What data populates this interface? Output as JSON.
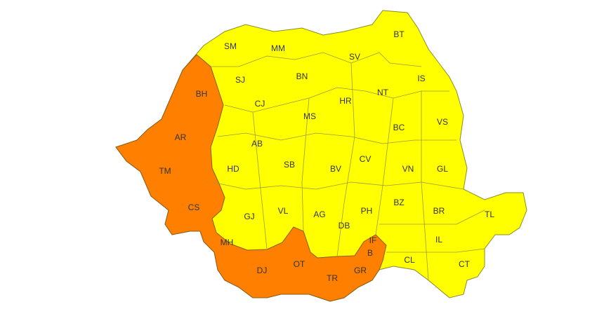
{
  "colors": {
    "yellow_warning": "#FFFF00",
    "orange_warning": "#FF8000",
    "border": "#8a8a2a",
    "background": "#FFFFFF"
  },
  "counties": {
    "orange": [
      "BH",
      "AR",
      "TM",
      "CS",
      "MH",
      "DJ",
      "OT",
      "TR",
      "GR",
      "IF",
      "B"
    ],
    "yellow": [
      "SM",
      "MM",
      "SV",
      "BT",
      "SJ",
      "BN",
      "IS",
      "NT",
      "CJ",
      "MS",
      "HR",
      "BC",
      "VS",
      "AB",
      "HD",
      "SB",
      "BV",
      "CV",
      "VN",
      "GL",
      "GJ",
      "VL",
      "AG",
      "DB",
      "PH",
      "BZ",
      "BR",
      "TL",
      "IL",
      "CL",
      "CT"
    ]
  },
  "labels": {
    "SM": "SM",
    "MM": "MM",
    "SV": "SV",
    "BT": "BT",
    "SJ": "SJ",
    "BN": "BN",
    "IS": "IS",
    "BH": "BH",
    "NT": "NT",
    "CJ": "CJ",
    "MS": "MS",
    "HR": "HR",
    "BC": "BC",
    "VS": "VS",
    "AR": "AR",
    "AB": "AB",
    "HD": "HD",
    "SB": "SB",
    "BV": "BV",
    "CV": "CV",
    "VN": "VN",
    "GL": "GL",
    "TM": "TM",
    "CS": "CS",
    "GJ": "GJ",
    "VL": "VL",
    "AG": "AG",
    "DB": "DB",
    "PH": "PH",
    "BZ": "BZ",
    "BR": "BR",
    "TL": "TL",
    "MH": "MH",
    "IF": "IF",
    "B": "B",
    "IL": "IL",
    "DJ": "DJ",
    "OT": "OT",
    "TR": "TR",
    "GR": "GR",
    "CL": "CL",
    "CT": "CT"
  }
}
